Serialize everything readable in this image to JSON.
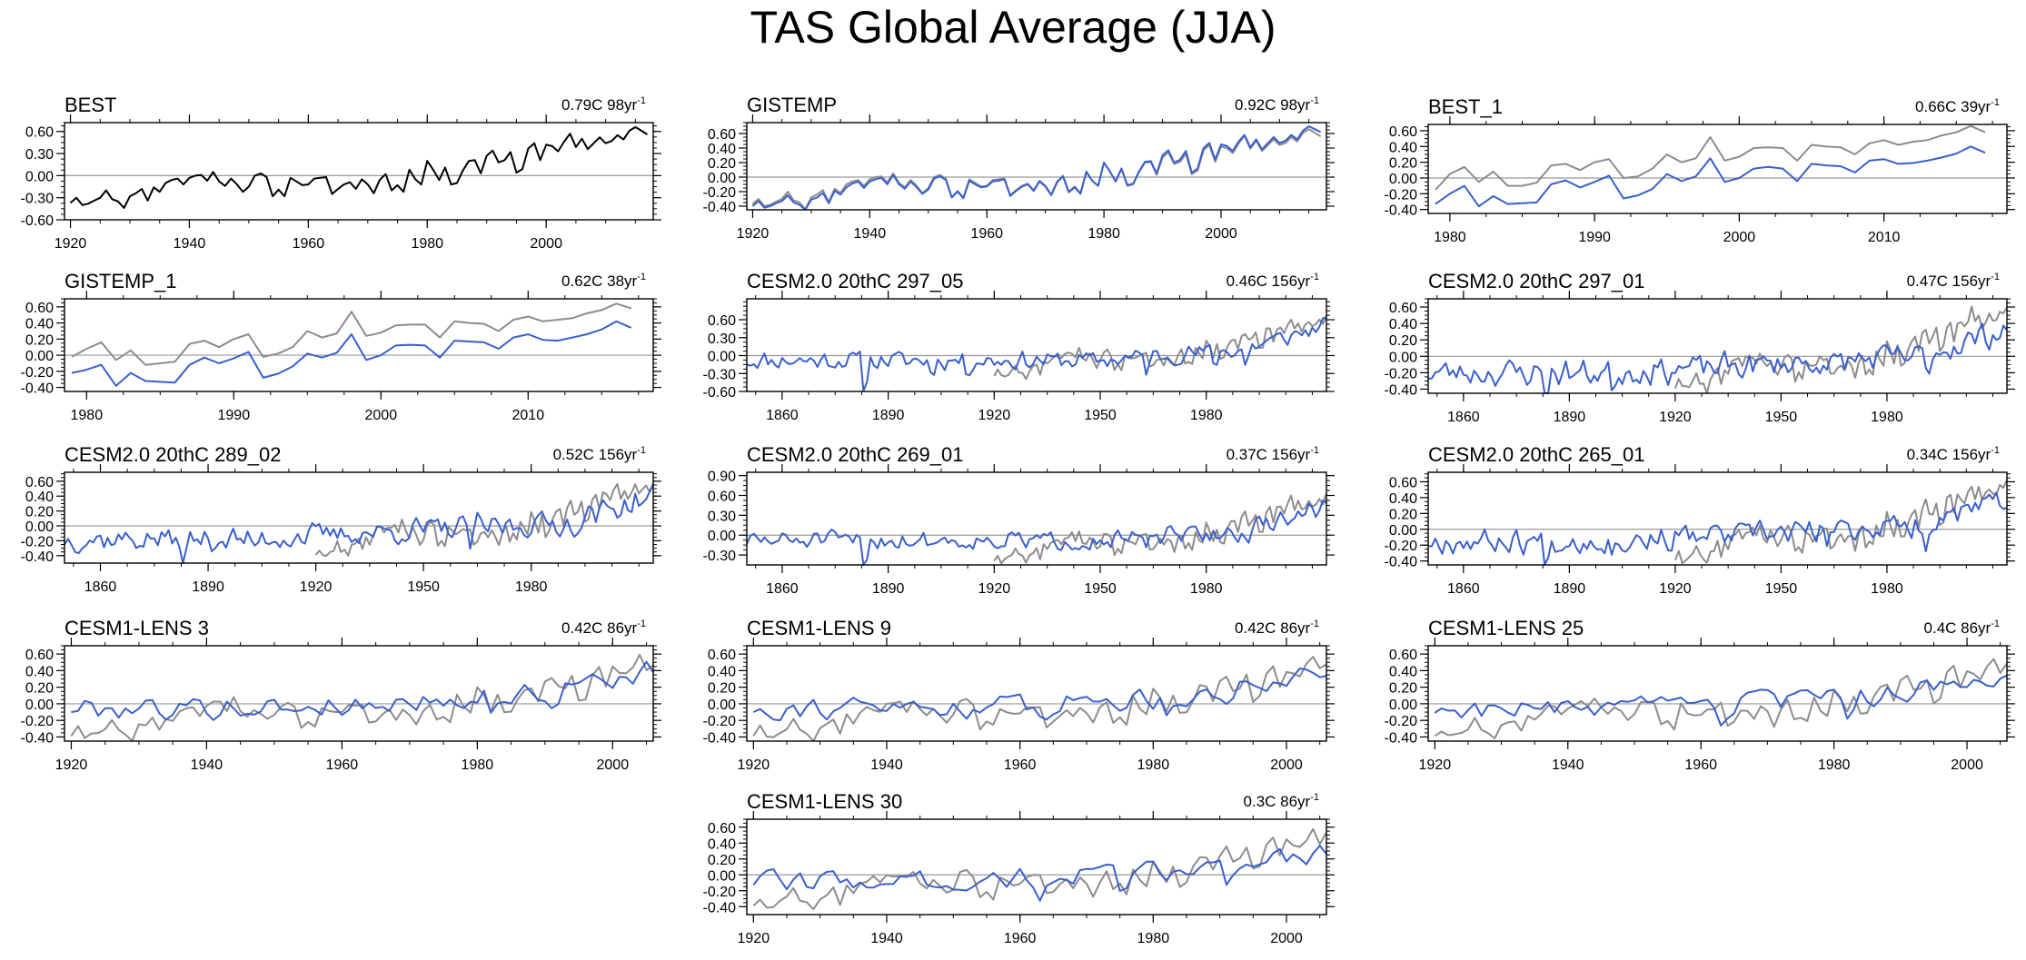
{
  "title": "TAS Global Average (JJA)",
  "colors": {
    "obs": "#000000",
    "model": "#3a5fcd",
    "reference": "#8c8c8c",
    "zero_line": "#999999"
  },
  "trend_unit_suffix": "-1",
  "chart_data": [
    {
      "type": "line",
      "name": "BEST",
      "trend": "0.79C 98yr",
      "xlim": [
        1919,
        2018
      ],
      "ylim": [
        -0.6,
        0.72
      ],
      "yticks": [
        -0.6,
        -0.3,
        0.0,
        0.3,
        0.6
      ],
      "ytick_labels": [
        "-0.60",
        "-0.30",
        "0.00",
        "0.30",
        "0.60"
      ],
      "xticks": [
        1920,
        1940,
        1960,
        1980,
        2000
      ],
      "series": [
        {
          "name": "BEST",
          "role": "obs",
          "start": 1920,
          "values": [
            -0.37,
            -0.3,
            -0.4,
            -0.38,
            -0.34,
            -0.3,
            -0.2,
            -0.32,
            -0.35,
            -0.44,
            -0.28,
            -0.24,
            -0.18,
            -0.34,
            -0.16,
            -0.22,
            -0.1,
            -0.06,
            -0.04,
            -0.12,
            -0.03,
            0.0,
            0.01,
            -0.07,
            0.05,
            -0.08,
            -0.14,
            -0.04,
            -0.12,
            -0.22,
            -0.15,
            0.0,
            0.03,
            -0.02,
            -0.28,
            -0.19,
            -0.28,
            -0.03,
            -0.08,
            -0.13,
            -0.12,
            -0.04,
            -0.03,
            -0.02,
            -0.25,
            -0.18,
            -0.12,
            -0.09,
            -0.18,
            -0.05,
            -0.12,
            -0.24,
            -0.06,
            0.02,
            -0.2,
            -0.13,
            -0.22,
            0.08,
            -0.05,
            -0.12,
            0.2,
            0.08,
            -0.06,
            0.11,
            -0.12,
            -0.1,
            0.07,
            0.2,
            0.21,
            0.03,
            0.27,
            0.34,
            0.18,
            0.21,
            0.32,
            0.04,
            0.09,
            0.37,
            0.44,
            0.21,
            0.42,
            0.4,
            0.33,
            0.46,
            0.57,
            0.39,
            0.5,
            0.36,
            0.44,
            0.52,
            0.44,
            0.47,
            0.55,
            0.49,
            0.61,
            0.66,
            0.61,
            0.56
          ]
        }
      ]
    },
    {
      "type": "line",
      "name": "GISTEMP",
      "trend": "0.92C 98yr",
      "xlim": [
        1919,
        2018
      ],
      "ylim": [
        -0.45,
        0.75
      ],
      "yticks": [
        -0.4,
        -0.2,
        0.0,
        0.2,
        0.4,
        0.6
      ],
      "ytick_labels": [
        "-0.40",
        "-0.20",
        "0.00",
        "0.20",
        "0.40",
        "0.60"
      ],
      "xticks": [
        1920,
        1940,
        1960,
        1980,
        2000
      ],
      "series": [
        {
          "name": "BEST",
          "role": "reference",
          "start": 1920,
          "values": [
            -0.37,
            -0.3,
            -0.4,
            -0.38,
            -0.34,
            -0.3,
            -0.2,
            -0.32,
            -0.35,
            -0.44,
            -0.28,
            -0.24,
            -0.18,
            -0.34,
            -0.16,
            -0.22,
            -0.1,
            -0.06,
            -0.04,
            -0.12,
            -0.03,
            0.0,
            0.01,
            -0.07,
            0.05,
            -0.08,
            -0.14,
            -0.04,
            -0.12,
            -0.22,
            -0.15,
            0.0,
            0.03,
            -0.02,
            -0.28,
            -0.19,
            -0.28,
            -0.03,
            -0.08,
            -0.13,
            -0.12,
            -0.04,
            -0.03,
            -0.02,
            -0.25,
            -0.18,
            -0.12,
            -0.09,
            -0.18,
            -0.05,
            -0.12,
            -0.24,
            -0.06,
            0.02,
            -0.2,
            -0.13,
            -0.22,
            0.08,
            -0.05,
            -0.12,
            0.2,
            0.08,
            -0.06,
            0.11,
            -0.12,
            -0.1,
            0.07,
            0.2,
            0.21,
            0.03,
            0.27,
            0.34,
            0.18,
            0.21,
            0.32,
            0.04,
            0.09,
            0.37,
            0.44,
            0.21,
            0.42,
            0.4,
            0.33,
            0.46,
            0.57,
            0.39,
            0.5,
            0.36,
            0.44,
            0.52,
            0.44,
            0.47,
            0.55,
            0.49,
            0.61,
            0.66,
            0.61,
            0.56
          ]
        },
        {
          "name": "GISTEMP",
          "role": "model",
          "start": 1920,
          "values": [
            -0.4,
            -0.33,
            -0.42,
            -0.4,
            -0.36,
            -0.33,
            -0.25,
            -0.35,
            -0.38,
            -0.45,
            -0.31,
            -0.28,
            -0.22,
            -0.36,
            -0.19,
            -0.24,
            -0.14,
            -0.09,
            -0.06,
            -0.15,
            -0.06,
            -0.03,
            -0.01,
            -0.1,
            0.03,
            -0.1,
            -0.16,
            -0.06,
            -0.14,
            -0.23,
            -0.17,
            -0.02,
            0.01,
            -0.04,
            -0.28,
            -0.2,
            -0.29,
            -0.05,
            -0.1,
            -0.14,
            -0.13,
            -0.06,
            -0.05,
            -0.03,
            -0.26,
            -0.19,
            -0.13,
            -0.1,
            -0.19,
            -0.06,
            -0.13,
            -0.25,
            -0.07,
            0.01,
            -0.21,
            -0.14,
            -0.23,
            0.07,
            -0.05,
            -0.12,
            0.2,
            0.08,
            -0.06,
            0.12,
            -0.11,
            -0.09,
            0.08,
            0.21,
            0.22,
            0.05,
            0.3,
            0.37,
            0.2,
            0.24,
            0.36,
            0.06,
            0.12,
            0.4,
            0.47,
            0.24,
            0.45,
            0.43,
            0.36,
            0.49,
            0.58,
            0.41,
            0.52,
            0.38,
            0.47,
            0.55,
            0.47,
            0.5,
            0.58,
            0.52,
            0.64,
            0.7,
            0.66,
            0.62
          ]
        }
      ]
    },
    {
      "type": "line",
      "name": "BEST_1",
      "trend": "0.66C 39yr",
      "xlim": [
        1978.5,
        2018.5
      ],
      "ylim": [
        -0.45,
        0.68
      ],
      "yticks": [
        -0.4,
        -0.2,
        0.0,
        0.2,
        0.4,
        0.6
      ],
      "ytick_labels": [
        "-0.40",
        "-0.20",
        "0.00",
        "0.20",
        "0.40",
        "0.60"
      ],
      "xticks": [
        1980,
        1990,
        2000,
        2010
      ],
      "series": [
        {
          "name": "GISTEMP_1",
          "role": "reference",
          "start": 1979,
          "values": [
            -0.15,
            0.05,
            0.14,
            -0.05,
            0.08,
            -0.1,
            -0.1,
            -0.06,
            0.16,
            0.18,
            0.1,
            0.2,
            0.24,
            0.0,
            0.02,
            0.12,
            0.3,
            0.2,
            0.25,
            0.52,
            0.22,
            0.27,
            0.38,
            0.39,
            0.38,
            0.22,
            0.42,
            0.4,
            0.39,
            0.3,
            0.44,
            0.48,
            0.42,
            0.46,
            0.48,
            0.54,
            0.58,
            0.66,
            0.58
          ]
        },
        {
          "name": "BEST_1",
          "role": "model",
          "start": 1979,
          "values": [
            -0.33,
            -0.2,
            -0.1,
            -0.36,
            -0.23,
            -0.33,
            -0.32,
            -0.31,
            -0.08,
            -0.03,
            -0.12,
            -0.05,
            0.03,
            -0.26,
            -0.22,
            -0.14,
            0.05,
            -0.04,
            0.02,
            0.25,
            -0.05,
            0.0,
            0.12,
            0.14,
            0.12,
            -0.04,
            0.18,
            0.16,
            0.15,
            0.07,
            0.22,
            0.24,
            0.18,
            0.19,
            0.22,
            0.26,
            0.31,
            0.4,
            0.32
          ]
        }
      ]
    },
    {
      "type": "line",
      "name": "GISTEMP_1",
      "trend": "0.62C 38yr",
      "xlim": [
        1978.5,
        2018.5
      ],
      "ylim": [
        -0.45,
        0.7
      ],
      "yticks": [
        -0.4,
        -0.2,
        0.0,
        0.2,
        0.4,
        0.6
      ],
      "ytick_labels": [
        "-0.40",
        "-0.20",
        "0.00",
        "0.20",
        "0.40",
        "0.60"
      ],
      "xticks": [
        1980,
        1990,
        2000,
        2010
      ],
      "series": [
        {
          "name": "BEST_1",
          "role": "reference",
          "start": 1979,
          "values": [
            -0.02,
            0.08,
            0.16,
            -0.06,
            0.06,
            -0.12,
            -0.1,
            -0.08,
            0.14,
            0.18,
            0.1,
            0.2,
            0.26,
            -0.02,
            0.02,
            0.1,
            0.3,
            0.22,
            0.27,
            0.54,
            0.24,
            0.28,
            0.37,
            0.38,
            0.38,
            0.22,
            0.42,
            0.4,
            0.39,
            0.3,
            0.44,
            0.48,
            0.42,
            0.44,
            0.46,
            0.52,
            0.56,
            0.64,
            0.58
          ]
        },
        {
          "name": "GISTEMP_1",
          "role": "model",
          "start": 1979,
          "values": [
            -0.22,
            -0.18,
            -0.12,
            -0.38,
            -0.22,
            -0.32,
            -0.33,
            -0.34,
            -0.12,
            -0.03,
            -0.1,
            -0.04,
            0.04,
            -0.28,
            -0.23,
            -0.14,
            0.02,
            -0.03,
            0.03,
            0.26,
            -0.06,
            0.0,
            0.12,
            0.13,
            0.12,
            -0.03,
            0.18,
            0.17,
            0.16,
            0.08,
            0.22,
            0.26,
            0.19,
            0.18,
            0.22,
            0.26,
            0.32,
            0.42,
            0.34
          ]
        }
      ]
    },
    {
      "type": "line",
      "name": "CESM2.0 20thC 297_05",
      "trend": "0.46C 156yr",
      "xlim": [
        1850,
        2014
      ],
      "ylim": [
        -0.6,
        0.95
      ],
      "yticks": [
        -0.6,
        -0.3,
        0.0,
        0.3,
        0.6
      ],
      "ytick_labels": [
        "-0.60",
        "-0.30",
        "0.00",
        "0.30",
        "0.60"
      ],
      "xticks": [
        1860,
        1890,
        1920,
        1950,
        1980
      ],
      "model_start": 1850,
      "ref_start": 1920,
      "series": [
        {
          "name": "CESM2.0 20thC 297_05",
          "role": "model"
        },
        {
          "name": "BEST",
          "role": "reference"
        }
      ]
    },
    {
      "type": "line",
      "name": "CESM2.0 20thC 297_01",
      "trend": "0.47C 156yr",
      "xlim": [
        1850,
        2014
      ],
      "ylim": [
        -0.45,
        0.7
      ],
      "yticks": [
        -0.4,
        -0.2,
        0.0,
        0.2,
        0.4,
        0.6
      ],
      "ytick_labels": [
        "-0.40",
        "-0.20",
        "0.00",
        "0.20",
        "0.40",
        "0.60"
      ],
      "xticks": [
        1860,
        1890,
        1920,
        1950,
        1980
      ],
      "model_start": 1850,
      "ref_start": 1920,
      "series": [
        {
          "name": "CESM2.0 20thC 297_01",
          "role": "model"
        },
        {
          "name": "BEST",
          "role": "reference"
        }
      ]
    },
    {
      "type": "line",
      "name": "CESM2.0 20thC 289_02",
      "trend": "0.52C 156yr",
      "xlim": [
        1850,
        2014
      ],
      "ylim": [
        -0.5,
        0.72
      ],
      "yticks": [
        -0.4,
        -0.2,
        0.0,
        0.2,
        0.4,
        0.6
      ],
      "ytick_labels": [
        "-0.40",
        "-0.20",
        "0.00",
        "0.20",
        "0.40",
        "0.60"
      ],
      "xticks": [
        1860,
        1890,
        1920,
        1950,
        1980
      ],
      "model_start": 1850,
      "ref_start": 1920,
      "series": [
        {
          "name": "CESM2.0 20thC 289_02",
          "role": "model"
        },
        {
          "name": "BEST",
          "role": "reference"
        }
      ]
    },
    {
      "type": "line",
      "name": "CESM2.0 20thC 269_01",
      "trend": "0.37C 156yr",
      "xlim": [
        1850,
        2014
      ],
      "ylim": [
        -0.45,
        0.95
      ],
      "yticks": [
        -0.3,
        0.0,
        0.3,
        0.6,
        0.9
      ],
      "ytick_labels": [
        "-0.30",
        "0.00",
        "0.30",
        "0.60",
        "0.90"
      ],
      "xticks": [
        1860,
        1890,
        1920,
        1950,
        1980
      ],
      "model_start": 1850,
      "ref_start": 1920,
      "series": [
        {
          "name": "CESM2.0 20thC 269_01",
          "role": "model"
        },
        {
          "name": "BEST",
          "role": "reference"
        }
      ]
    },
    {
      "type": "line",
      "name": "CESM2.0 20thC 265_01",
      "trend": "0.34C 156yr",
      "xlim": [
        1850,
        2014
      ],
      "ylim": [
        -0.45,
        0.72
      ],
      "yticks": [
        -0.4,
        -0.2,
        0.0,
        0.2,
        0.4,
        0.6
      ],
      "ytick_labels": [
        "-0.40",
        "-0.20",
        "0.00",
        "0.20",
        "0.40",
        "0.60"
      ],
      "xticks": [
        1860,
        1890,
        1920,
        1950,
        1980
      ],
      "model_start": 1850,
      "ref_start": 1920,
      "series": [
        {
          "name": "CESM2.0 20thC 265_01",
          "role": "model"
        },
        {
          "name": "BEST",
          "role": "reference"
        }
      ]
    },
    {
      "type": "line",
      "name": "CESM1-LENS 3",
      "trend": "0.42C 86yr",
      "xlim": [
        1919,
        2006
      ],
      "ylim": [
        -0.45,
        0.7
      ],
      "yticks": [
        -0.4,
        -0.2,
        0.0,
        0.2,
        0.4,
        0.6
      ],
      "ytick_labels": [
        "-0.40",
        "-0.20",
        "0.00",
        "0.20",
        "0.40",
        "0.60"
      ],
      "xticks": [
        1920,
        1940,
        1960,
        1980,
        2000
      ],
      "model_start": 1920,
      "ref_start": 1920,
      "series": [
        {
          "name": "CESM1-LENS 3",
          "role": "model"
        },
        {
          "name": "BEST",
          "role": "reference"
        }
      ]
    },
    {
      "type": "line",
      "name": "CESM1-LENS 9",
      "trend": "0.42C 86yr",
      "xlim": [
        1919,
        2006
      ],
      "ylim": [
        -0.45,
        0.7
      ],
      "yticks": [
        -0.4,
        -0.2,
        0.0,
        0.2,
        0.4,
        0.6
      ],
      "ytick_labels": [
        "-0.40",
        "-0.20",
        "0.00",
        "0.20",
        "0.40",
        "0.60"
      ],
      "xticks": [
        1920,
        1940,
        1960,
        1980,
        2000
      ],
      "model_start": 1920,
      "ref_start": 1920,
      "series": [
        {
          "name": "CESM1-LENS 9",
          "role": "model"
        },
        {
          "name": "BEST",
          "role": "reference"
        }
      ]
    },
    {
      "type": "line",
      "name": "CESM1-LENS 25",
      "trend": "0.4C 86yr",
      "xlim": [
        1919,
        2006
      ],
      "ylim": [
        -0.45,
        0.7
      ],
      "yticks": [
        -0.4,
        -0.2,
        0.0,
        0.2,
        0.4,
        0.6
      ],
      "ytick_labels": [
        "-0.40",
        "-0.20",
        "0.00",
        "0.20",
        "0.40",
        "0.60"
      ],
      "xticks": [
        1920,
        1940,
        1960,
        1980,
        2000
      ],
      "model_start": 1920,
      "ref_start": 1920,
      "series": [
        {
          "name": "CESM1-LENS 25",
          "role": "model"
        },
        {
          "name": "BEST",
          "role": "reference"
        }
      ]
    },
    {
      "type": "line",
      "name": "CESM1-LENS 30",
      "trend": "0.3C 86yr",
      "xlim": [
        1919,
        2006
      ],
      "ylim": [
        -0.5,
        0.7
      ],
      "yticks": [
        -0.4,
        -0.2,
        0.0,
        0.2,
        0.4,
        0.6
      ],
      "ytick_labels": [
        "-0.40",
        "-0.20",
        "0.00",
        "0.20",
        "0.40",
        "0.60"
      ],
      "xticks": [
        1920,
        1940,
        1960,
        1980,
        2000
      ],
      "model_start": 1920,
      "ref_start": 1920,
      "series": [
        {
          "name": "CESM1-LENS 30",
          "role": "model"
        },
        {
          "name": "BEST",
          "role": "reference"
        }
      ]
    }
  ]
}
